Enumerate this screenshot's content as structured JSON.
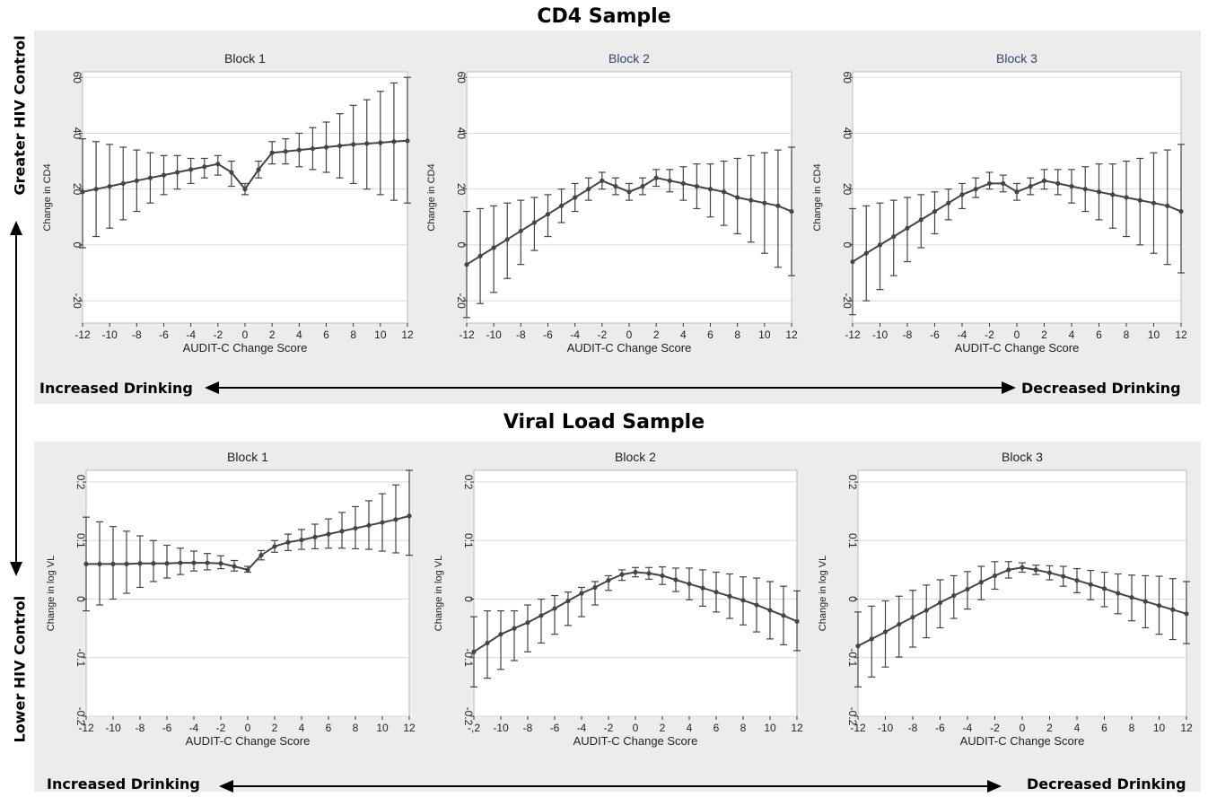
{
  "figure": {
    "cd4_section_title": "CD4 Sample",
    "vl_section_title": "Viral Load Sample",
    "side_top_label": "Greater HIV Control",
    "side_bottom_label": "Lower HIV Control",
    "increased_label": "Increased Drinking",
    "decreased_label": "Decreased Drinking",
    "colors": {
      "band": "#ececec",
      "series": "#444444",
      "block1_title": "#222222",
      "block_title_blue": "#334477",
      "grid": "#d8d8d8"
    }
  },
  "chart_data": [
    {
      "type": "line",
      "title": "Block 1",
      "xlabel": "AUDIT-C Change Score",
      "ylabel": "Change in CD4",
      "xlim": [
        -12,
        12
      ],
      "ylim": [
        -28,
        62
      ],
      "yticks": [
        "-20",
        "0",
        "20",
        "40",
        "60"
      ],
      "xticks": [
        "-12",
        "-10",
        "-8",
        "-6",
        "-4",
        "-2",
        "0",
        "2",
        "4",
        "6",
        "8",
        "10",
        "12"
      ],
      "grid": true,
      "series": [
        {
          "x": [
            -12,
            -11,
            -10,
            -9,
            -8,
            -7,
            -6,
            -5,
            -4,
            -3,
            -2,
            -1,
            0,
            1,
            2,
            3,
            4,
            5,
            6,
            7,
            8,
            9,
            10,
            11,
            12
          ],
          "y": [
            19,
            20,
            21,
            22,
            23,
            24,
            25,
            26,
            27,
            28,
            29,
            26,
            20,
            27,
            33,
            33.5,
            34,
            34.5,
            35,
            35.5,
            36,
            36.3,
            36.6,
            37,
            37.3
          ],
          "lower": [
            -1,
            3,
            6,
            9,
            12,
            15,
            18,
            20,
            22,
            24,
            25,
            21,
            18,
            24,
            29,
            29,
            28,
            27,
            26,
            24,
            22,
            20,
            18,
            16,
            15
          ],
          "upper": [
            38,
            37,
            36,
            35,
            34,
            33,
            32,
            32,
            31,
            31,
            32,
            30,
            22,
            30,
            37,
            38,
            40,
            42,
            44,
            47,
            50,
            52,
            55,
            58,
            60
          ]
        }
      ]
    },
    {
      "type": "line",
      "title": "Block 2",
      "xlabel": "AUDIT-C Change Score",
      "ylabel": "Change in CD4",
      "xlim": [
        -12,
        12
      ],
      "ylim": [
        -28,
        62
      ],
      "yticks": [
        "-20",
        "0",
        "20",
        "40",
        "60"
      ],
      "xticks": [
        "-12",
        "-10",
        "-8",
        "-6",
        "-4",
        "-2",
        "0",
        "2",
        "4",
        "6",
        "8",
        "10",
        "12"
      ],
      "grid": true,
      "series": [
        {
          "x": [
            -12,
            -11,
            -10,
            -9,
            -8,
            -7,
            -6,
            -5,
            -4,
            -3,
            -2,
            -1,
            0,
            1,
            2,
            3,
            4,
            5,
            6,
            7,
            8,
            9,
            10,
            11,
            12
          ],
          "y": [
            -7,
            -4,
            -1,
            2,
            5,
            8,
            11,
            14,
            17,
            20,
            23,
            21,
            19,
            21,
            24,
            23,
            22,
            21,
            20,
            19,
            17,
            16,
            15,
            14,
            12
          ],
          "lower": [
            -26,
            -21,
            -17,
            -12,
            -7,
            -2,
            3,
            8,
            12,
            16,
            20,
            18,
            16,
            18,
            21,
            19,
            16,
            13,
            10,
            7,
            4,
            1,
            -3,
            -8,
            -11
          ],
          "upper": [
            12,
            13,
            14,
            15,
            16,
            17,
            18,
            20,
            22,
            24,
            26,
            24,
            22,
            24,
            27,
            27,
            28,
            29,
            29,
            30,
            31,
            32,
            33,
            34,
            35
          ]
        }
      ]
    },
    {
      "type": "line",
      "title": "Block 3",
      "xlabel": "AUDIT-C Change Score",
      "ylabel": "Change in CD4",
      "xlim": [
        -12,
        12
      ],
      "ylim": [
        -28,
        62
      ],
      "yticks": [
        "-20",
        "0",
        "20",
        "40",
        "60"
      ],
      "xticks": [
        "-12",
        "-10",
        "-8",
        "-6",
        "-4",
        "-2",
        "0",
        "2",
        "4",
        "6",
        "8",
        "10",
        "12"
      ],
      "grid": true,
      "series": [
        {
          "x": [
            -12,
            -11,
            -10,
            -9,
            -8,
            -7,
            -6,
            -5,
            -4,
            -3,
            -2,
            -1,
            0,
            1,
            2,
            3,
            4,
            5,
            6,
            7,
            8,
            9,
            10,
            11,
            12
          ],
          "y": [
            -6,
            -3,
            0,
            3,
            6,
            9,
            12,
            15,
            18,
            20,
            22,
            22,
            19,
            21,
            23,
            22,
            21,
            20,
            19,
            18,
            17,
            16,
            15,
            14,
            12
          ],
          "lower": [
            -25,
            -20,
            -16,
            -11,
            -6,
            -1,
            4,
            9,
            13,
            17,
            20,
            19,
            16,
            18,
            20,
            18,
            15,
            12,
            9,
            6,
            3,
            0,
            -3,
            -7,
            -10
          ],
          "upper": [
            13,
            14,
            15,
            16,
            17,
            18,
            19,
            20,
            22,
            24,
            26,
            25,
            22,
            24,
            27,
            27,
            27,
            28,
            29,
            29,
            30,
            31,
            33,
            34,
            36
          ]
        }
      ]
    },
    {
      "type": "line",
      "title": "Block 1",
      "xlabel": "AUDIT-C Change Score",
      "ylabel": "Change in log VL",
      "xlim": [
        -12,
        12
      ],
      "ylim": [
        -0.2,
        0.22
      ],
      "yticks": [
        "-0.2",
        "-0.1",
        "0",
        "0.1",
        "0.2"
      ],
      "xticks": [
        "-12",
        "-10",
        "-8",
        "-6",
        "-4",
        "-2",
        "0",
        "2",
        "4",
        "6",
        "8",
        "10",
        "12"
      ],
      "grid": true,
      "series": [
        {
          "x": [
            -12,
            -11,
            -10,
            -9,
            -8,
            -7,
            -6,
            -5,
            -4,
            -3,
            -2,
            -1,
            0,
            1,
            2,
            3,
            4,
            5,
            6,
            7,
            8,
            9,
            10,
            11,
            12
          ],
          "y": [
            0.06,
            0.06,
            0.06,
            0.06,
            0.061,
            0.061,
            0.061,
            0.062,
            0.062,
            0.062,
            0.061,
            0.056,
            0.05,
            0.075,
            0.09,
            0.097,
            0.101,
            0.106,
            0.111,
            0.116,
            0.121,
            0.126,
            0.131,
            0.136,
            0.142
          ],
          "lower": [
            -0.02,
            -0.01,
            0.0,
            0.01,
            0.02,
            0.03,
            0.036,
            0.042,
            0.048,
            0.05,
            0.052,
            0.048,
            0.046,
            0.067,
            0.08,
            0.083,
            0.085,
            0.086,
            0.087,
            0.087,
            0.086,
            0.085,
            0.082,
            0.079,
            0.075
          ],
          "upper": [
            0.14,
            0.132,
            0.124,
            0.116,
            0.108,
            0.1,
            0.092,
            0.087,
            0.082,
            0.078,
            0.074,
            0.066,
            0.056,
            0.083,
            0.1,
            0.111,
            0.119,
            0.128,
            0.137,
            0.148,
            0.158,
            0.168,
            0.18,
            0.195,
            0.22
          ]
        }
      ]
    },
    {
      "type": "line",
      "title": "Block 2",
      "xlabel": "AUDIT-C Change Score",
      "ylabel": "Change in log VL",
      "xlim": [
        -12,
        12
      ],
      "ylim": [
        -0.2,
        0.22
      ],
      "yticks": [
        "-0.2",
        "-0.1",
        "0",
        "0.1",
        "0.2"
      ],
      "xticks": [
        "-,2",
        "-10",
        "-8",
        "-6",
        "-4",
        "-2",
        "0",
        "2",
        "4",
        "6",
        "8",
        "10",
        "12"
      ],
      "grid": true,
      "series": [
        {
          "x": [
            -12,
            -11,
            -10,
            -9,
            -8,
            -7,
            -6,
            -5,
            -4,
            -3,
            -2,
            -1,
            0,
            1,
            2,
            3,
            4,
            5,
            6,
            7,
            8,
            9,
            10,
            11,
            12
          ],
          "y": [
            -0.09,
            -0.075,
            -0.06,
            -0.05,
            -0.04,
            -0.028,
            -0.016,
            -0.003,
            0.01,
            0.02,
            0.032,
            0.042,
            0.046,
            0.044,
            0.04,
            0.033,
            0.026,
            0.019,
            0.012,
            0.005,
            -0.002,
            -0.01,
            -0.019,
            -0.028,
            -0.038
          ],
          "lower": [
            -0.15,
            -0.135,
            -0.12,
            -0.105,
            -0.09,
            -0.075,
            -0.06,
            -0.045,
            -0.03,
            -0.01,
            0.015,
            0.032,
            0.038,
            0.034,
            0.025,
            0.013,
            -0.001,
            -0.012,
            -0.022,
            -0.033,
            -0.044,
            -0.056,
            -0.068,
            -0.078,
            -0.088
          ],
          "upper": [
            -0.03,
            -0.02,
            -0.02,
            -0.02,
            -0.01,
            0.0,
            0.006,
            0.012,
            0.02,
            0.03,
            0.04,
            0.05,
            0.054,
            0.054,
            0.055,
            0.053,
            0.053,
            0.05,
            0.046,
            0.043,
            0.038,
            0.036,
            0.03,
            0.022,
            0.014
          ]
        }
      ]
    },
    {
      "type": "line",
      "title": "Block 3",
      "xlabel": "AUDIT-C Change Score",
      "ylabel": "Change in log VL",
      "xlim": [
        -12,
        12
      ],
      "ylim": [
        -0.2,
        0.22
      ],
      "yticks": [
        "-0.2",
        "-0.1",
        "0",
        "0.1",
        "0.2"
      ],
      "xticks": [
        "-12",
        "-10",
        "-8",
        "-6",
        "-4",
        "-2",
        "0",
        "2",
        "4",
        "6",
        "8",
        "10",
        "12"
      ],
      "grid": true,
      "series": [
        {
          "x": [
            -12,
            -11,
            -10,
            -9,
            -8,
            -7,
            -6,
            -5,
            -4,
            -3,
            -2,
            -1,
            0,
            1,
            2,
            3,
            4,
            5,
            6,
            7,
            8,
            9,
            10,
            11,
            12
          ],
          "y": [
            -0.08,
            -0.068,
            -0.056,
            -0.043,
            -0.031,
            -0.019,
            -0.006,
            0.006,
            0.017,
            0.029,
            0.04,
            0.05,
            0.054,
            0.05,
            0.045,
            0.039,
            0.032,
            0.025,
            0.018,
            0.01,
            0.003,
            -0.004,
            -0.011,
            -0.018,
            -0.025
          ],
          "lower": [
            -0.15,
            -0.133,
            -0.116,
            -0.099,
            -0.082,
            -0.066,
            -0.049,
            -0.033,
            -0.017,
            -0.001,
            0.017,
            0.036,
            0.046,
            0.042,
            0.033,
            0.022,
            0.011,
            -0.001,
            -0.013,
            -0.025,
            -0.037,
            -0.049,
            -0.06,
            -0.069,
            -0.076
          ],
          "upper": [
            -0.022,
            -0.012,
            -0.003,
            0.005,
            0.015,
            0.024,
            0.033,
            0.04,
            0.047,
            0.056,
            0.064,
            0.064,
            0.062,
            0.058,
            0.057,
            0.056,
            0.052,
            0.049,
            0.046,
            0.043,
            0.041,
            0.04,
            0.039,
            0.035,
            0.03
          ]
        }
      ]
    }
  ]
}
